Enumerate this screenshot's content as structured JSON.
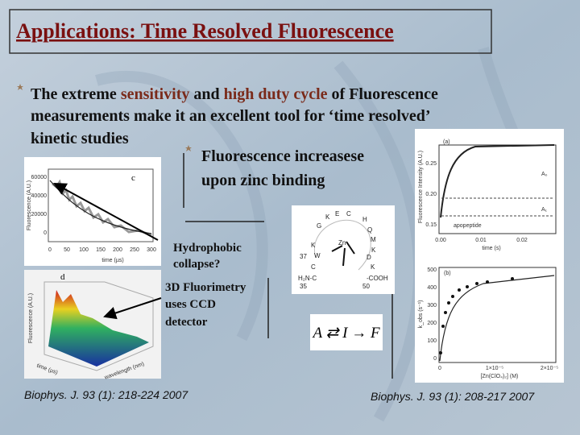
{
  "title": "Applications: Time Resolved Fluorescence",
  "bullet": {
    "line1": [
      "The extreme ",
      "sensitivity",
      " and ",
      "high duty cycle",
      " of Fluorescence"
    ],
    "line2": "measurements make it an excellent tool for ‘time resolved’",
    "line3": "kinetic studies"
  },
  "sub_bullet": [
    "Fluorescence increasese",
    "upon zinc binding"
  ],
  "annotations": {
    "hydrophobic": [
      "Hydrophobic",
      "collapse?"
    ],
    "fluorimetry": [
      "3D Fluorimetry",
      "uses CCD",
      "detector"
    ]
  },
  "figures": {
    "decay": {
      "panel": "c",
      "ylabel": "Fluorescence (A.U.)",
      "yticks": [
        "60000",
        "40000",
        "20000",
        "0"
      ],
      "xticks": [
        "0",
        "50",
        "100",
        "150",
        "200",
        "250",
        "300"
      ],
      "xlabel": "time (µs)"
    },
    "surface": {
      "panel": "d",
      "ylabel": "Fluorescence (A.U.)",
      "time_label": "time (µs)",
      "wavelength_label": "wavelength (nm)"
    },
    "peptide": {
      "residues": [
        "K",
        "E",
        "C",
        "H",
        "G",
        "Q",
        "M",
        "K",
        "Zn",
        "K",
        "37",
        "W",
        "C",
        "D",
        "K",
        "H₂N-C",
        "-COOH",
        "35",
        "50"
      ]
    },
    "scheme": "A ⇄ I → F",
    "kinetics": {
      "panel_a": "(a)",
      "ylabel_a": "Fluorescence Intensity (A.U.)",
      "yticks_a": [
        "0.25",
        "0.20",
        "0.15"
      ],
      "a0": "A₀",
      "a1": "A₁",
      "apopeptide": "apopeptide",
      "xticks_a": [
        "0.00",
        "0.01",
        "0.02"
      ],
      "xlabel_a": "time (s)",
      "panel_b": "(b)",
      "ylabel_b": "k_obs (s⁻¹)",
      "yticks_b": [
        "500",
        "400",
        "300",
        "200",
        "100",
        "0"
      ],
      "xticks_b": [
        "0",
        "1×10⁻⁵",
        "2×10⁻⁵"
      ],
      "xlabel_b": "[Zn(ClO₄)₂] (M)"
    }
  },
  "citations": [
    "Biophys. J. 93 (1): 218-224 2007",
    "Biophys. J. 93 (1): 208-217 2007"
  ]
}
